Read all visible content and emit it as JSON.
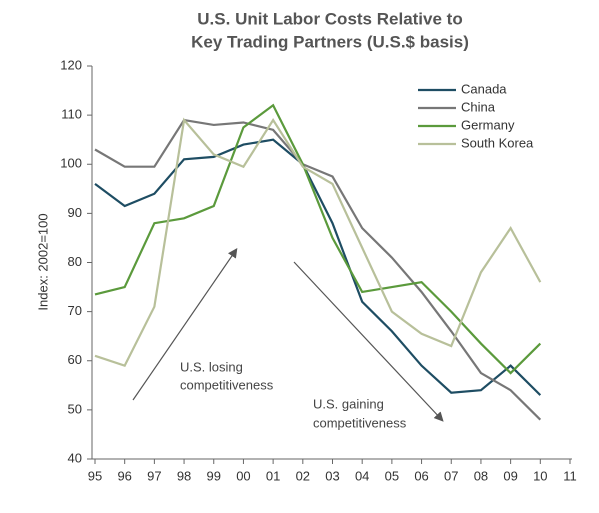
{
  "chart_data": {
    "type": "line",
    "title": [
      "U.S. Unit Labor Costs Relative to",
      "Key Trading Partners (U.S.$ basis)"
    ],
    "y_label": "Index: 2002=100",
    "categories": [
      "95",
      "96",
      "97",
      "98",
      "99",
      "00",
      "01",
      "02",
      "03",
      "04",
      "05",
      "06",
      "07",
      "08",
      "09",
      "10",
      "11"
    ],
    "series": [
      {
        "name": "Canada",
        "color": "#1e4d63",
        "values": [
          96,
          91.5,
          94,
          101,
          101.5,
          104,
          105,
          100,
          88,
          72,
          66,
          59,
          53.5,
          54,
          59,
          53,
          null
        ]
      },
      {
        "name": "China",
        "color": "#777777",
        "values": [
          103,
          99.5,
          99.5,
          109,
          108,
          108.5,
          107,
          100,
          97.5,
          87,
          81,
          74,
          66,
          57.5,
          54,
          48,
          null
        ]
      },
      {
        "name": "Germany",
        "color": "#5b9a3c",
        "values": [
          73.5,
          75,
          88,
          89,
          91.5,
          107.5,
          112,
          100,
          85,
          74,
          75,
          76,
          70,
          63.5,
          57.5,
          63.5,
          null
        ]
      },
      {
        "name": "South Korea",
        "color": "#b8c09a",
        "values": [
          61,
          59,
          71,
          109,
          102,
          99.5,
          109,
          99.5,
          96,
          83,
          70,
          65.5,
          63,
          78,
          87,
          76,
          null
        ]
      }
    ],
    "ylim": [
      40,
      120
    ],
    "yticks": [
      40,
      50,
      60,
      70,
      80,
      90,
      100,
      110,
      120
    ],
    "grid": false,
    "legend": "upper right",
    "annotations": [
      [
        "U.S. losing",
        "competitiveness"
      ],
      [
        "U.S. gaining",
        "competitiveness"
      ]
    ]
  }
}
